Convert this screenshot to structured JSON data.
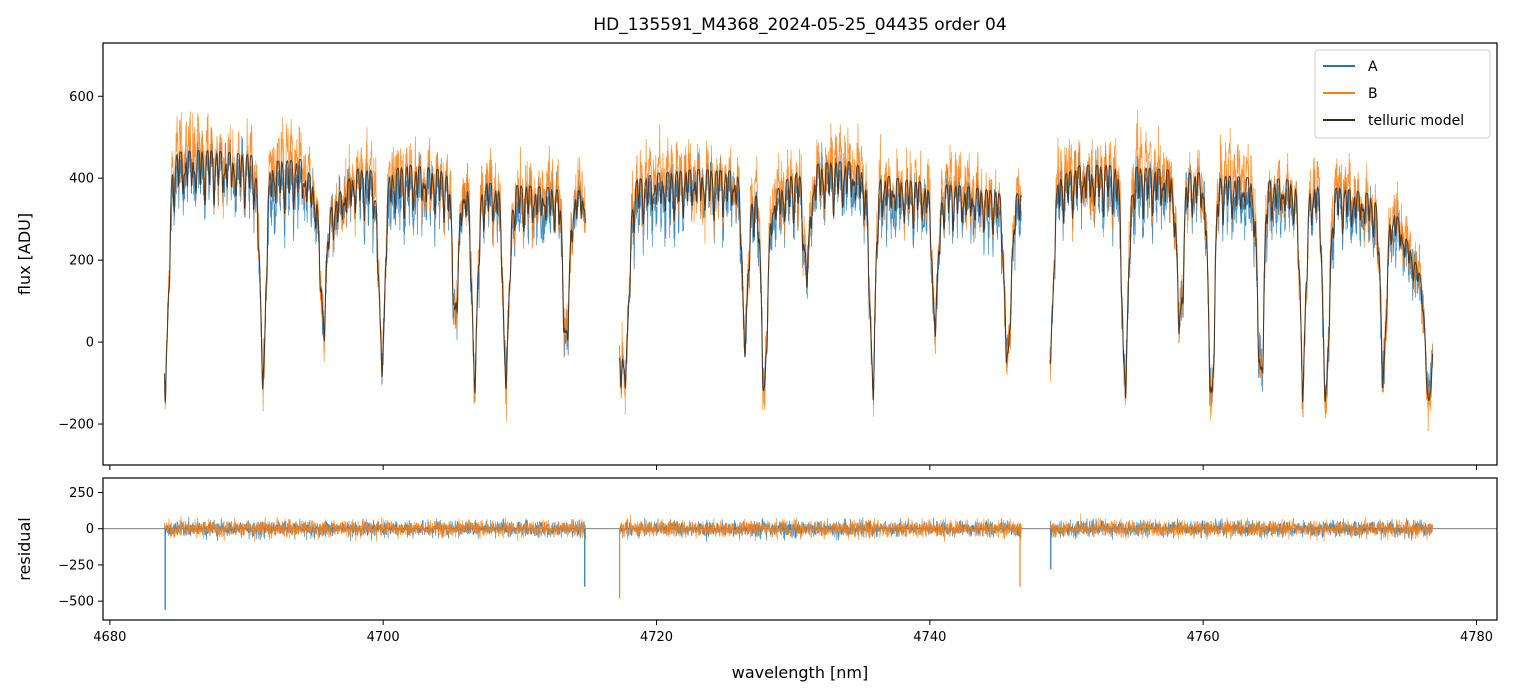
{
  "chart_data": [
    {
      "type": "line",
      "title": "HD_135591_M4368_2024-05-25_04435  order 04",
      "xlabel": "",
      "ylabel": "flux [ADU]",
      "xlim": [
        4679.5,
        4781.5
      ],
      "ylim": [
        -300,
        730
      ],
      "yticks": [
        -200,
        0,
        200,
        400,
        600
      ],
      "yticklabels": [
        "−200",
        "0",
        "200",
        "400",
        "600"
      ],
      "xticks": [
        4680,
        4700,
        4720,
        4740,
        4760,
        4780
      ],
      "legend": {
        "location": "top-right",
        "entries": [
          "A",
          "B",
          "telluric model"
        ]
      },
      "segments": [
        [
          4684.0,
          4714.8
        ],
        [
          4717.3,
          4746.7
        ],
        [
          4748.8,
          4776.8
        ]
      ],
      "continuum": {
        "x": [
          4684,
          4687,
          4690,
          4692,
          4694,
          4696,
          4698,
          4700,
          4702,
          4704,
          4706,
          4708,
          4710,
          4712,
          4714.8,
          4717.3,
          4720,
          4723,
          4726,
          4728,
          4730,
          4732,
          4734,
          4736,
          4738,
          4740,
          4742,
          4744,
          4746.7,
          4748.8,
          4751,
          4754,
          4757,
          4760,
          4763,
          4766,
          4769,
          4772,
          4774,
          4776.8
        ],
        "y": [
          470,
          478,
          468,
          450,
          455,
          330,
          430,
          425,
          440,
          430,
          400,
          395,
          390,
          385,
          375,
          390,
          420,
          430,
          425,
          350,
          420,
          445,
          450,
          420,
          405,
          395,
          390,
          380,
          370,
          395,
          440,
          440,
          430,
          420,
          410,
          405,
          390,
          370,
          330,
          90
        ]
      },
      "absorption_lines": [
        {
          "x": 4684.1,
          "depth": 500
        },
        {
          "x": 4691.2,
          "depth": 480
        },
        {
          "x": 4695.6,
          "depth": 270
        },
        {
          "x": 4699.9,
          "depth": 430
        },
        {
          "x": 4705.3,
          "depth": 300
        },
        {
          "x": 4706.7,
          "depth": 420
        },
        {
          "x": 4709.0,
          "depth": 430
        },
        {
          "x": 4713.4,
          "depth": 350
        },
        {
          "x": 4717.3,
          "depth": 400
        },
        {
          "x": 4717.8,
          "depth": 380
        },
        {
          "x": 4726.5,
          "depth": 350
        },
        {
          "x": 4727.9,
          "depth": 430
        },
        {
          "x": 4731.0,
          "depth": 220
        },
        {
          "x": 4735.8,
          "depth": 460
        },
        {
          "x": 4740.4,
          "depth": 300
        },
        {
          "x": 4745.7,
          "depth": 400
        },
        {
          "x": 4748.8,
          "depth": 380
        },
        {
          "x": 4754.3,
          "depth": 500
        },
        {
          "x": 4758.3,
          "depth": 350
        },
        {
          "x": 4760.6,
          "depth": 520
        },
        {
          "x": 4764.2,
          "depth": 470
        },
        {
          "x": 4767.3,
          "depth": 430
        },
        {
          "x": 4769.0,
          "depth": 500
        },
        {
          "x": 4773.2,
          "depth": 380
        },
        {
          "x": 4776.5,
          "depth": 260
        }
      ],
      "noise_amplitude": {
        "A": 75,
        "B": 85
      },
      "series": [
        {
          "name": "A",
          "color": "#1f77b4"
        },
        {
          "name": "B",
          "color": "#ff7f0e"
        },
        {
          "name": "telluric model",
          "color": "#3b2a1e"
        }
      ]
    },
    {
      "type": "line",
      "title": "",
      "xlabel": "wavelength [nm]",
      "ylabel": "residual",
      "xlim": [
        4679.5,
        4781.5
      ],
      "ylim": [
        -630,
        350
      ],
      "yticks": [
        -500,
        -250,
        0,
        250
      ],
      "yticklabels": [
        "−500",
        "−250",
        "0",
        "250"
      ],
      "xticks": [
        4680,
        4700,
        4720,
        4740,
        4760,
        4780
      ],
      "xticklabels": [
        "4680",
        "4700",
        "4720",
        "4740",
        "4760",
        "4780"
      ],
      "zero_line": 0,
      "residual_amplitude": {
        "A": 70,
        "B": 75
      },
      "residual_spikes": [
        {
          "x": 4684.05,
          "y": -560,
          "series": "A"
        },
        {
          "x": 4714.75,
          "y": -400,
          "series": "A"
        },
        {
          "x": 4717.3,
          "y": -480,
          "series": "B"
        },
        {
          "x": 4746.6,
          "y": -400,
          "series": "B"
        },
        {
          "x": 4748.85,
          "y": -280,
          "series": "A"
        }
      ],
      "series": [
        {
          "name": "A",
          "color": "#1f77b4"
        },
        {
          "name": "B",
          "color": "#ff7f0e"
        }
      ]
    }
  ]
}
